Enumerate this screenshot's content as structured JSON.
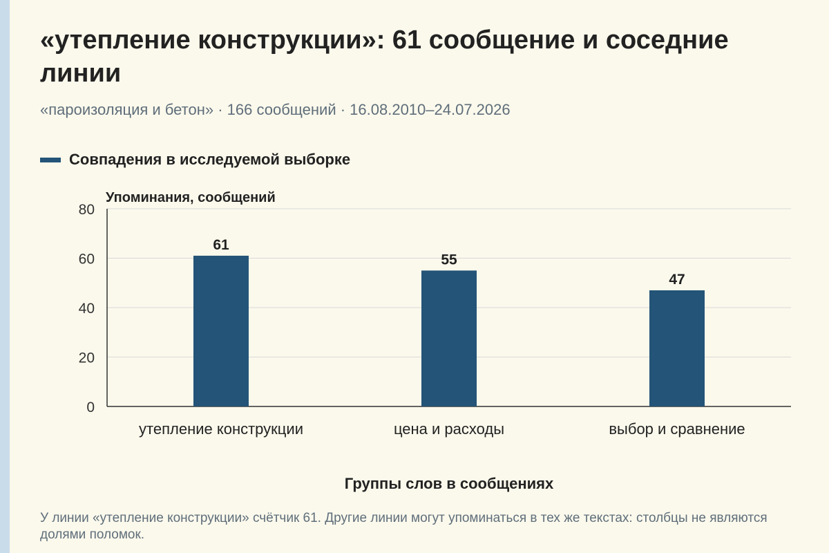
{
  "header": {
    "title": "«утепление конструкции»: 61 сообщение и соседние линии",
    "subtitle": "«пароизоляция и бетон» · 166 сообщений · 16.08.2010–24.07.2026"
  },
  "legend": {
    "label": "Совпадения в исследуемой выборке"
  },
  "colors": {
    "bar": "#245478",
    "grid": "#d9d9d9",
    "axis": "#333333"
  },
  "chart_data": {
    "type": "bar",
    "categories": [
      "утепление конструкции",
      "цена и расходы",
      "выбор и сравнение"
    ],
    "series": [
      {
        "name": "Совпадения в исследуемой выборке",
        "values": [
          61,
          55,
          47
        ]
      }
    ],
    "ylabel": "Упоминания, сообщений",
    "xlabel": "Группы слов в сообщениях",
    "ylim": [
      0,
      80
    ],
    "yticks": [
      0,
      20,
      40,
      60,
      80
    ],
    "grid": true,
    "legend_position": "top-left",
    "data_labels": true
  },
  "footnote": "У линии «утепление конструкции» счётчик 61. Другие линии могут упоминаться в тех же текстах: столбцы не являются долями поломок."
}
